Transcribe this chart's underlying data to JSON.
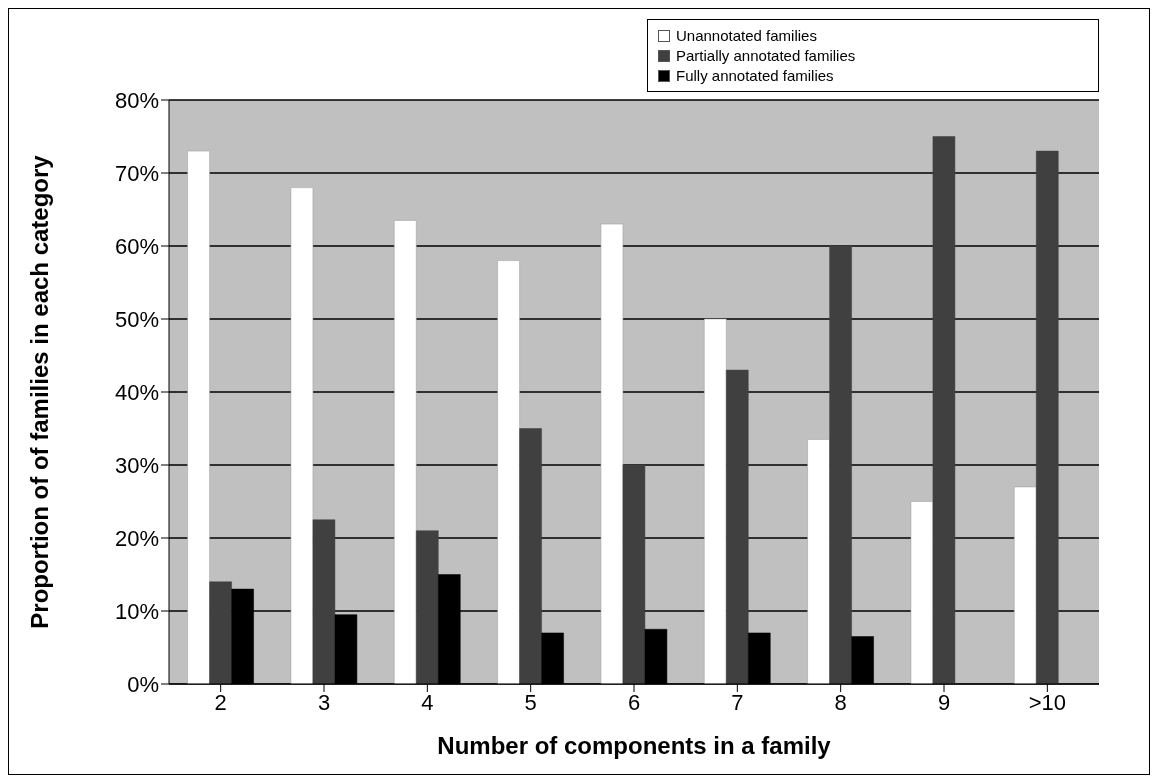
{
  "chart_data": {
    "type": "bar",
    "xlabel": "Number of components in a family",
    "ylabel": "Proportion of of families in each category",
    "categories": [
      "2",
      "3",
      "4",
      "5",
      "6",
      "7",
      "8",
      "9",
      ">10"
    ],
    "series": [
      {
        "name": "Unannotated families",
        "color": "#ffffff",
        "values": [
          73,
          68,
          63.5,
          58,
          63,
          50,
          33.5,
          25,
          27
        ]
      },
      {
        "name": "Partially annotated families",
        "color": "#404040",
        "values": [
          14,
          22.5,
          21,
          35,
          30,
          43,
          60,
          75,
          73
        ]
      },
      {
        "name": "Fully annotated families",
        "color": "#000000",
        "values": [
          13,
          9.5,
          15,
          7,
          7.5,
          7,
          6.5,
          0,
          0
        ]
      }
    ],
    "ylim": [
      0,
      80
    ],
    "yticks": [
      {
        "value": 0,
        "label": "0%"
      },
      {
        "value": 10,
        "label": "10%"
      },
      {
        "value": 20,
        "label": "20%"
      },
      {
        "value": 30,
        "label": "30%"
      },
      {
        "value": 40,
        "label": "40%"
      },
      {
        "value": 50,
        "label": "50%"
      },
      {
        "value": 60,
        "label": "60%"
      },
      {
        "value": 70,
        "label": "70%"
      },
      {
        "value": 80,
        "label": "80%"
      }
    ],
    "grid": "y",
    "legend": "top right"
  }
}
